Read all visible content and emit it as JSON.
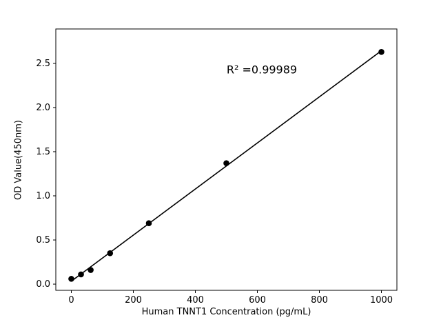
{
  "chart_data": {
    "type": "scatter",
    "title": "",
    "xlabel": "Human TNNT1 Concentration (pg/mL)",
    "ylabel": "OD Value(450nm)",
    "annotation": "R² =0.99989",
    "x": [
      0,
      31.25,
      62.5,
      125,
      250,
      500,
      1000
    ],
    "y": [
      0.06,
      0.11,
      0.16,
      0.35,
      0.69,
      1.37,
      2.63
    ],
    "fit": "linear",
    "xlim": [
      -50,
      1050
    ],
    "ylim": [
      -0.07,
      2.89
    ],
    "xticks": [
      0,
      200,
      400,
      600,
      800,
      1000
    ],
    "yticks": [
      0.0,
      0.5,
      1.0,
      1.5,
      2.0,
      2.5
    ],
    "marker_color": "#000000",
    "line_color": "#000000",
    "background": "#ffffff",
    "grid": false,
    "legend": "none"
  }
}
